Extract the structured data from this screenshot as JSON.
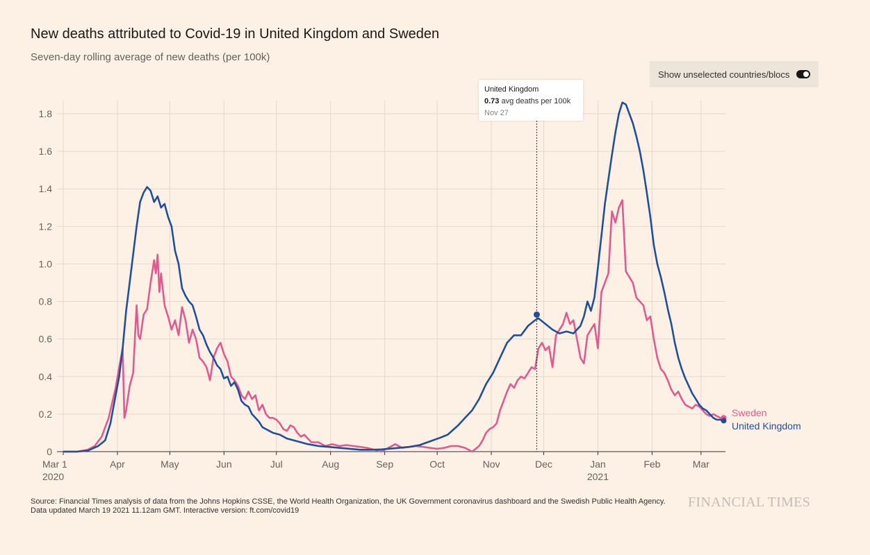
{
  "header": {
    "title": "New deaths attributed to Covid-19 in United Kingdom and Sweden",
    "subtitle": "Seven-day rolling average of new deaths (per 100k)"
  },
  "toggle": {
    "label": "Show unselected countries/blocs",
    "state": "on"
  },
  "tooltip": {
    "country": "United Kingdom",
    "value": "0.73",
    "unit": " avg deaths per 100k",
    "date": "Nov 27"
  },
  "footer": {
    "source": "Source: Financial Times analysis of data from the Johns Hopkins CSSE, the World Health Organization, the UK Government coronavirus dashboard and the Swedish Public Health Agency.",
    "updated": "Data updated March 19 2021 11.12am GMT. Interactive version: ft.com/covid19"
  },
  "brand": "FINANCIAL TIMES",
  "colors": {
    "uk": "#1e4e9c",
    "sweden": "#e05a8f",
    "grid": "#e3d8cc",
    "axis": "#33302e",
    "background": "#fdf1e5"
  },
  "chart_data": {
    "type": "line",
    "title": "New deaths attributed to Covid-19 in United Kingdom and Sweden",
    "ylabel": "Seven-day rolling average of new deaths (per 100k)",
    "ylim": [
      0,
      1.9
    ],
    "yticks": [
      0,
      0.2,
      0.4,
      0.6,
      0.8,
      1.0,
      1.2,
      1.4,
      1.6,
      1.8
    ],
    "ytick_labels": [
      "0",
      "0.2",
      "0.4",
      "0.6",
      "0.8",
      "1.0",
      "1.2",
      "1.4",
      "1.6",
      "1.8"
    ],
    "xlim_day": [
      0,
      379
    ],
    "xticks": [
      {
        "day": 0,
        "label": "Mar 1",
        "sublabel": "2020"
      },
      {
        "day": 31,
        "label": "Apr"
      },
      {
        "day": 61,
        "label": "May"
      },
      {
        "day": 92,
        "label": "Jun"
      },
      {
        "day": 122,
        "label": "Jul"
      },
      {
        "day": 153,
        "label": "Aug"
      },
      {
        "day": 184,
        "label": "Sep"
      },
      {
        "day": 214,
        "label": "Oct"
      },
      {
        "day": 245,
        "label": "Nov"
      },
      {
        "day": 275,
        "label": "Dec"
      },
      {
        "day": 306,
        "label": "Jan",
        "sublabel": "2021"
      },
      {
        "day": 337,
        "label": "Feb"
      },
      {
        "day": 365,
        "label": "Mar"
      }
    ],
    "x_unit": "days since Mar 1 2020",
    "highlight": {
      "series": "United Kingdom",
      "day": 271,
      "value": 0.73,
      "date": "Nov 27"
    },
    "series": [
      {
        "name": "United Kingdom",
        "label": "United Kingdom",
        "color": "#1e4e9c",
        "points": [
          [
            0,
            0
          ],
          [
            8,
            0
          ],
          [
            14,
            0.005
          ],
          [
            20,
            0.03
          ],
          [
            24,
            0.06
          ],
          [
            27,
            0.15
          ],
          [
            30,
            0.3
          ],
          [
            32,
            0.4
          ],
          [
            34,
            0.55
          ],
          [
            36,
            0.75
          ],
          [
            38,
            0.9
          ],
          [
            40,
            1.05
          ],
          [
            42,
            1.2
          ],
          [
            44,
            1.33
          ],
          [
            46,
            1.38
          ],
          [
            48,
            1.41
          ],
          [
            50,
            1.39
          ],
          [
            52,
            1.33
          ],
          [
            54,
            1.36
          ],
          [
            56,
            1.3
          ],
          [
            58,
            1.32
          ],
          [
            60,
            1.25
          ],
          [
            62,
            1.2
          ],
          [
            64,
            1.07
          ],
          [
            66,
            1.0
          ],
          [
            68,
            0.87
          ],
          [
            70,
            0.83
          ],
          [
            72,
            0.8
          ],
          [
            74,
            0.78
          ],
          [
            76,
            0.72
          ],
          [
            78,
            0.65
          ],
          [
            80,
            0.62
          ],
          [
            82,
            0.57
          ],
          [
            84,
            0.53
          ],
          [
            86,
            0.5
          ],
          [
            88,
            0.46
          ],
          [
            90,
            0.44
          ],
          [
            92,
            0.39
          ],
          [
            94,
            0.4
          ],
          [
            96,
            0.35
          ],
          [
            98,
            0.37
          ],
          [
            100,
            0.33
          ],
          [
            102,
            0.27
          ],
          [
            104,
            0.25
          ],
          [
            106,
            0.24
          ],
          [
            108,
            0.2
          ],
          [
            110,
            0.18
          ],
          [
            112,
            0.16
          ],
          [
            114,
            0.13
          ],
          [
            116,
            0.12
          ],
          [
            118,
            0.11
          ],
          [
            120,
            0.1
          ],
          [
            124,
            0.09
          ],
          [
            128,
            0.07
          ],
          [
            132,
            0.06
          ],
          [
            136,
            0.05
          ],
          [
            140,
            0.04
          ],
          [
            146,
            0.03
          ],
          [
            152,
            0.025
          ],
          [
            158,
            0.02
          ],
          [
            164,
            0.015
          ],
          [
            170,
            0.01
          ],
          [
            176,
            0.01
          ],
          [
            182,
            0.012
          ],
          [
            190,
            0.018
          ],
          [
            198,
            0.025
          ],
          [
            204,
            0.035
          ],
          [
            210,
            0.055
          ],
          [
            216,
            0.075
          ],
          [
            220,
            0.09
          ],
          [
            226,
            0.14
          ],
          [
            230,
            0.18
          ],
          [
            234,
            0.22
          ],
          [
            238,
            0.28
          ],
          [
            242,
            0.36
          ],
          [
            246,
            0.42
          ],
          [
            250,
            0.5
          ],
          [
            254,
            0.58
          ],
          [
            258,
            0.62
          ],
          [
            262,
            0.62
          ],
          [
            266,
            0.67
          ],
          [
            270,
            0.7
          ],
          [
            272,
            0.71
          ],
          [
            276,
            0.68
          ],
          [
            280,
            0.65
          ],
          [
            284,
            0.63
          ],
          [
            288,
            0.64
          ],
          [
            292,
            0.63
          ],
          [
            296,
            0.67
          ],
          [
            298,
            0.72
          ],
          [
            300,
            0.8
          ],
          [
            302,
            0.75
          ],
          [
            304,
            0.82
          ],
          [
            306,
            0.98
          ],
          [
            308,
            1.15
          ],
          [
            310,
            1.32
          ],
          [
            312,
            1.45
          ],
          [
            314,
            1.58
          ],
          [
            316,
            1.7
          ],
          [
            318,
            1.8
          ],
          [
            320,
            1.86
          ],
          [
            322,
            1.85
          ],
          [
            324,
            1.8
          ],
          [
            326,
            1.75
          ],
          [
            328,
            1.68
          ],
          [
            330,
            1.6
          ],
          [
            332,
            1.5
          ],
          [
            334,
            1.38
          ],
          [
            336,
            1.25
          ],
          [
            338,
            1.1
          ],
          [
            340,
            1.0
          ],
          [
            342,
            0.93
          ],
          [
            344,
            0.85
          ],
          [
            346,
            0.76
          ],
          [
            348,
            0.68
          ],
          [
            350,
            0.58
          ],
          [
            352,
            0.5
          ],
          [
            354,
            0.44
          ],
          [
            356,
            0.39
          ],
          [
            358,
            0.35
          ],
          [
            360,
            0.31
          ],
          [
            362,
            0.28
          ],
          [
            364,
            0.25
          ],
          [
            366,
            0.23
          ],
          [
            368,
            0.22
          ],
          [
            370,
            0.2
          ],
          [
            372,
            0.18
          ],
          [
            374,
            0.17
          ],
          [
            376,
            0.17
          ],
          [
            378,
            0.165
          ]
        ]
      },
      {
        "name": "Sweden",
        "label": "Sweden",
        "color": "#e05a8f",
        "points": [
          [
            0,
            0
          ],
          [
            8,
            0
          ],
          [
            14,
            0.01
          ],
          [
            18,
            0.03
          ],
          [
            22,
            0.08
          ],
          [
            26,
            0.18
          ],
          [
            30,
            0.34
          ],
          [
            32,
            0.45
          ],
          [
            34,
            0.55
          ],
          [
            35,
            0.18
          ],
          [
            36,
            0.22
          ],
          [
            38,
            0.35
          ],
          [
            40,
            0.42
          ],
          [
            42,
            0.78
          ],
          [
            43,
            0.62
          ],
          [
            44,
            0.6
          ],
          [
            46,
            0.73
          ],
          [
            48,
            0.76
          ],
          [
            50,
            0.9
          ],
          [
            52,
            1.02
          ],
          [
            53,
            0.95
          ],
          [
            54,
            1.05
          ],
          [
            55,
            0.85
          ],
          [
            56,
            0.95
          ],
          [
            58,
            0.78
          ],
          [
            60,
            0.72
          ],
          [
            62,
            0.65
          ],
          [
            64,
            0.7
          ],
          [
            66,
            0.62
          ],
          [
            68,
            0.77
          ],
          [
            70,
            0.7
          ],
          [
            72,
            0.58
          ],
          [
            74,
            0.65
          ],
          [
            76,
            0.6
          ],
          [
            78,
            0.5
          ],
          [
            80,
            0.48
          ],
          [
            82,
            0.45
          ],
          [
            84,
            0.38
          ],
          [
            86,
            0.5
          ],
          [
            88,
            0.55
          ],
          [
            90,
            0.58
          ],
          [
            92,
            0.52
          ],
          [
            94,
            0.48
          ],
          [
            96,
            0.4
          ],
          [
            98,
            0.38
          ],
          [
            100,
            0.35
          ],
          [
            102,
            0.3
          ],
          [
            104,
            0.28
          ],
          [
            106,
            0.32
          ],
          [
            108,
            0.28
          ],
          [
            110,
            0.3
          ],
          [
            112,
            0.22
          ],
          [
            114,
            0.25
          ],
          [
            116,
            0.2
          ],
          [
            118,
            0.18
          ],
          [
            120,
            0.18
          ],
          [
            122,
            0.17
          ],
          [
            124,
            0.15
          ],
          [
            126,
            0.12
          ],
          [
            128,
            0.11
          ],
          [
            130,
            0.14
          ],
          [
            132,
            0.13
          ],
          [
            134,
            0.1
          ],
          [
            136,
            0.08
          ],
          [
            138,
            0.09
          ],
          [
            140,
            0.07
          ],
          [
            142,
            0.05
          ],
          [
            146,
            0.05
          ],
          [
            150,
            0.03
          ],
          [
            154,
            0.04
          ],
          [
            158,
            0.03
          ],
          [
            162,
            0.035
          ],
          [
            166,
            0.03
          ],
          [
            170,
            0.025
          ],
          [
            174,
            0.02
          ],
          [
            178,
            0.01
          ],
          [
            182,
            0.0
          ],
          [
            186,
            0.02
          ],
          [
            190,
            0.04
          ],
          [
            194,
            0.02
          ],
          [
            198,
            0.025
          ],
          [
            202,
            0.03
          ],
          [
            206,
            0.025
          ],
          [
            210,
            0.02
          ],
          [
            214,
            0.015
          ],
          [
            218,
            0.02
          ],
          [
            222,
            0.03
          ],
          [
            226,
            0.03
          ],
          [
            230,
            0.02
          ],
          [
            234,
            0.0
          ],
          [
            238,
            0.03
          ],
          [
            240,
            0.06
          ],
          [
            242,
            0.1
          ],
          [
            244,
            0.12
          ],
          [
            246,
            0.13
          ],
          [
            248,
            0.15
          ],
          [
            250,
            0.22
          ],
          [
            252,
            0.27
          ],
          [
            254,
            0.32
          ],
          [
            256,
            0.36
          ],
          [
            258,
            0.34
          ],
          [
            260,
            0.38
          ],
          [
            262,
            0.4
          ],
          [
            264,
            0.39
          ],
          [
            266,
            0.42
          ],
          [
            268,
            0.45
          ],
          [
            270,
            0.44
          ],
          [
            272,
            0.55
          ],
          [
            274,
            0.58
          ],
          [
            276,
            0.54
          ],
          [
            278,
            0.56
          ],
          [
            280,
            0.45
          ],
          [
            282,
            0.62
          ],
          [
            284,
            0.65
          ],
          [
            286,
            0.68
          ],
          [
            288,
            0.74
          ],
          [
            290,
            0.68
          ],
          [
            292,
            0.7
          ],
          [
            294,
            0.6
          ],
          [
            296,
            0.5
          ],
          [
            298,
            0.47
          ],
          [
            300,
            0.62
          ],
          [
            302,
            0.65
          ],
          [
            304,
            0.68
          ],
          [
            306,
            0.55
          ],
          [
            308,
            0.85
          ],
          [
            310,
            0.9
          ],
          [
            312,
            0.95
          ],
          [
            314,
            1.28
          ],
          [
            316,
            1.22
          ],
          [
            318,
            1.3
          ],
          [
            320,
            1.34
          ],
          [
            322,
            0.96
          ],
          [
            324,
            0.93
          ],
          [
            326,
            0.9
          ],
          [
            328,
            0.82
          ],
          [
            330,
            0.8
          ],
          [
            332,
            0.78
          ],
          [
            334,
            0.7
          ],
          [
            336,
            0.72
          ],
          [
            338,
            0.6
          ],
          [
            340,
            0.5
          ],
          [
            342,
            0.44
          ],
          [
            344,
            0.42
          ],
          [
            346,
            0.38
          ],
          [
            348,
            0.33
          ],
          [
            350,
            0.3
          ],
          [
            352,
            0.32
          ],
          [
            354,
            0.28
          ],
          [
            356,
            0.25
          ],
          [
            358,
            0.24
          ],
          [
            360,
            0.23
          ],
          [
            362,
            0.25
          ],
          [
            364,
            0.24
          ],
          [
            366,
            0.22
          ],
          [
            368,
            0.2
          ],
          [
            370,
            0.19
          ],
          [
            372,
            0.2
          ],
          [
            374,
            0.19
          ],
          [
            376,
            0.18
          ],
          [
            378,
            0.18
          ]
        ]
      }
    ]
  }
}
